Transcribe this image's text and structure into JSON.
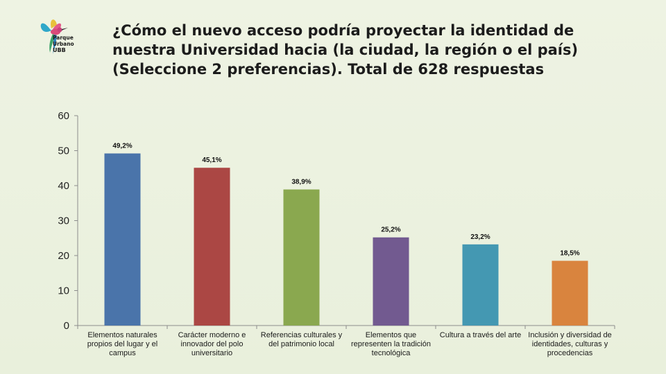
{
  "logo": {
    "line1": "Parque",
    "line2": "Urbano",
    "line3": "UBB",
    "icon": "hummingbird-icon"
  },
  "title": "¿Cómo el nuevo acceso podría proyectar la identidad de nuestra Universidad hacia (la ciudad, la región o el país) (Seleccione 2 preferencias). Total de 628 respuestas",
  "colors": {
    "background": "#ebf1de",
    "axis": "#8c8c8c"
  },
  "chart_data": {
    "type": "bar",
    "title": "¿Cómo el nuevo acceso podría proyectar la identidad de nuestra Universidad hacia (la ciudad, la región o el país) (Seleccione 2 preferencias). Total de 628 respuestas",
    "xlabel": "",
    "ylabel": "",
    "ylim": [
      0,
      60
    ],
    "yticks": [
      0,
      10,
      20,
      30,
      40,
      50,
      60
    ],
    "grid": false,
    "legend": "none",
    "categories": [
      "Elementos naturales propios del lugar y el campus",
      "Carácter moderno e innovador del polo universitario",
      "Referencias culturales y del patrimonio local",
      "Elementos que representen la tradición tecnológica",
      "Cultura a través del arte",
      "Inclusión y diversidad de identidades, culturas y procedencias"
    ],
    "values": [
      49.2,
      45.1,
      38.9,
      25.2,
      23.2,
      18.5
    ],
    "data_labels": [
      "49,2%",
      "45,1%",
      "38,9%",
      "25,2%",
      "23,2%",
      "18,5%"
    ],
    "bar_colors": [
      "#4a74aa",
      "#ab4744",
      "#8aa84f",
      "#725a90",
      "#4498b2",
      "#d9843e"
    ]
  }
}
